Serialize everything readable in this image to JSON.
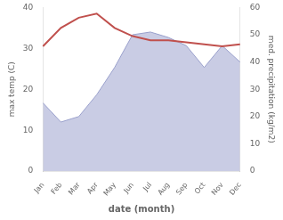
{
  "chart_data": {
    "type": "line",
    "categories": [
      "Jan",
      "Feb",
      "Mar",
      "Apr",
      "May",
      "Jun",
      "Jul",
      "Aug",
      "Sep",
      "Oct",
      "Nov",
      "Dec"
    ],
    "series": [
      {
        "type": "line",
        "color": "#c0504d",
        "values": [
          30.5,
          35.0,
          37.5,
          38.5,
          35.0,
          33.0,
          32.0,
          32.0,
          31.5,
          31.0,
          30.5,
          31.0
        ]
      },
      {
        "type": "area",
        "color": "#9aa0cc",
        "axis": "y2",
        "values": [
          25,
          18,
          20,
          28,
          38,
          50,
          51,
          49,
          46,
          38,
          46,
          40
        ]
      }
    ],
    "xlabel": "date (month)",
    "ylabel": "max temp (C)",
    "y2label": "med. precipitation (kg/m2)",
    "ylim": [
      0,
      40
    ],
    "yticks": [
      0,
      10,
      20,
      30,
      40
    ],
    "y2lim": [
      0,
      60
    ],
    "y2ticks": [
      0,
      10,
      20,
      30,
      40,
      50,
      60
    ],
    "grid": false
  }
}
